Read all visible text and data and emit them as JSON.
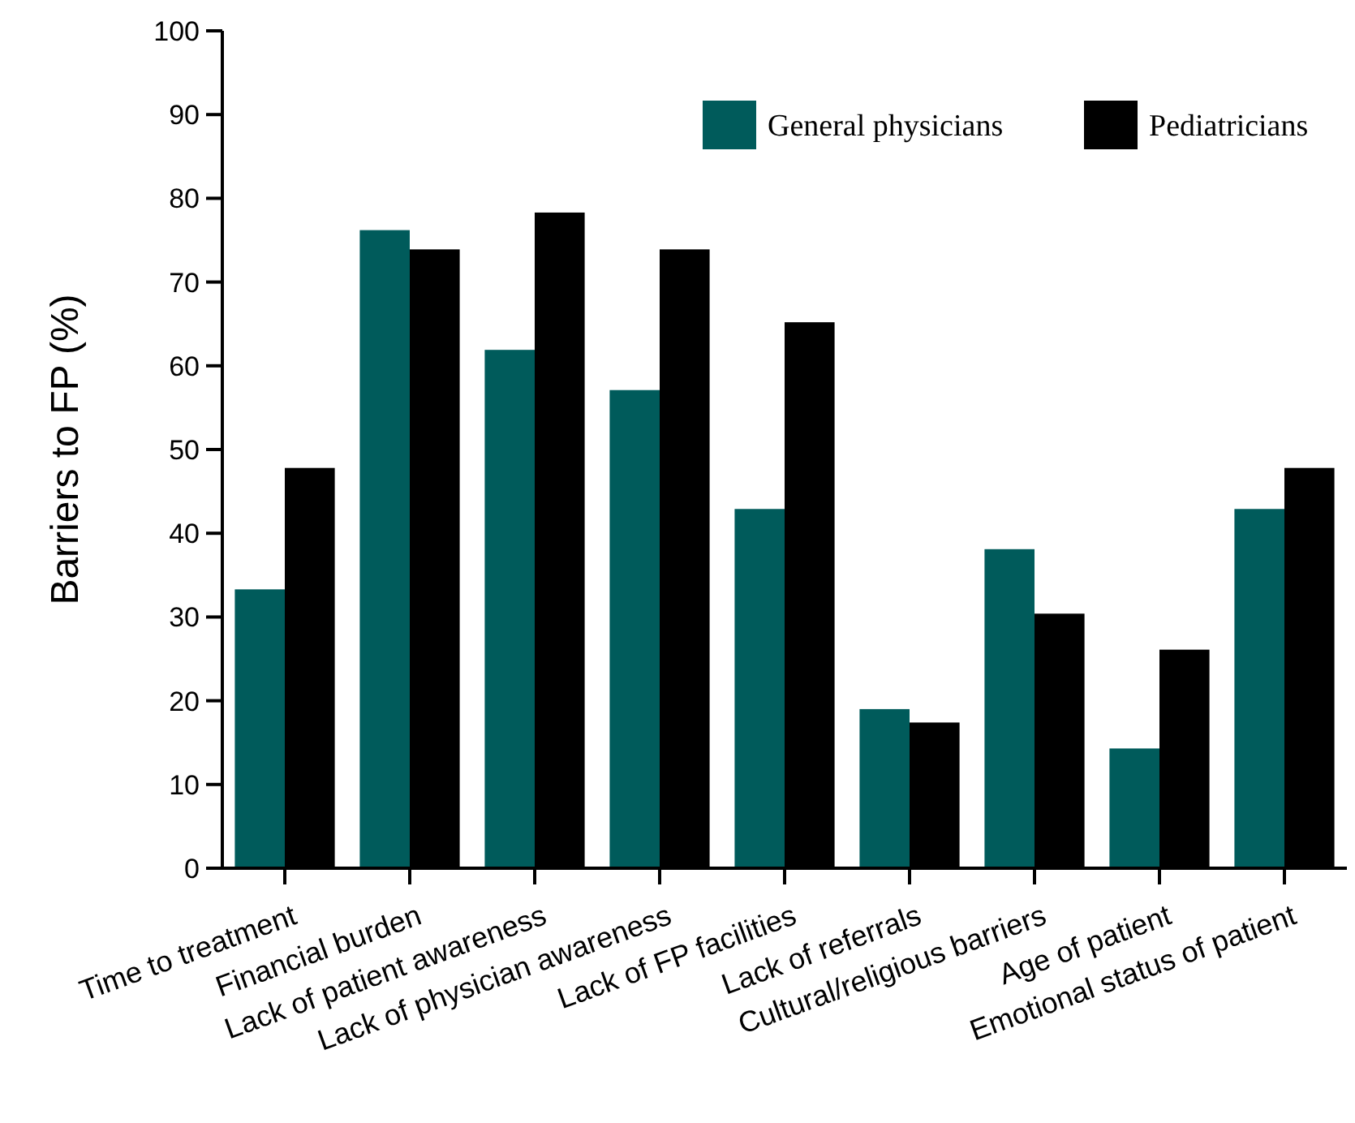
{
  "chart_data": {
    "type": "bar",
    "ylabel": "Barriers to FP (%)",
    "categories": [
      "Time to treatment",
      "Financial burden",
      "Lack of patient awareness",
      "Lack of physician awareness",
      "Lack of FP facilities",
      "Lack of referrals",
      "Cultural/religious barriers",
      "Age of patient",
      "Emotional status of patient"
    ],
    "series": [
      {
        "name": "General physicians",
        "color": "#005b5b",
        "values": [
          33.3,
          76.2,
          61.9,
          57.1,
          42.9,
          19.0,
          38.1,
          14.3,
          42.9
        ]
      },
      {
        "name": "Pediatricians",
        "color": "#000000",
        "values": [
          47.8,
          73.9,
          78.3,
          73.9,
          65.2,
          17.4,
          30.4,
          26.1,
          47.8
        ]
      }
    ],
    "ylim": [
      0,
      100
    ],
    "yticks": [
      0,
      10,
      20,
      30,
      40,
      50,
      60,
      70,
      80,
      90,
      100
    ],
    "grid": false,
    "legend": "top right"
  }
}
